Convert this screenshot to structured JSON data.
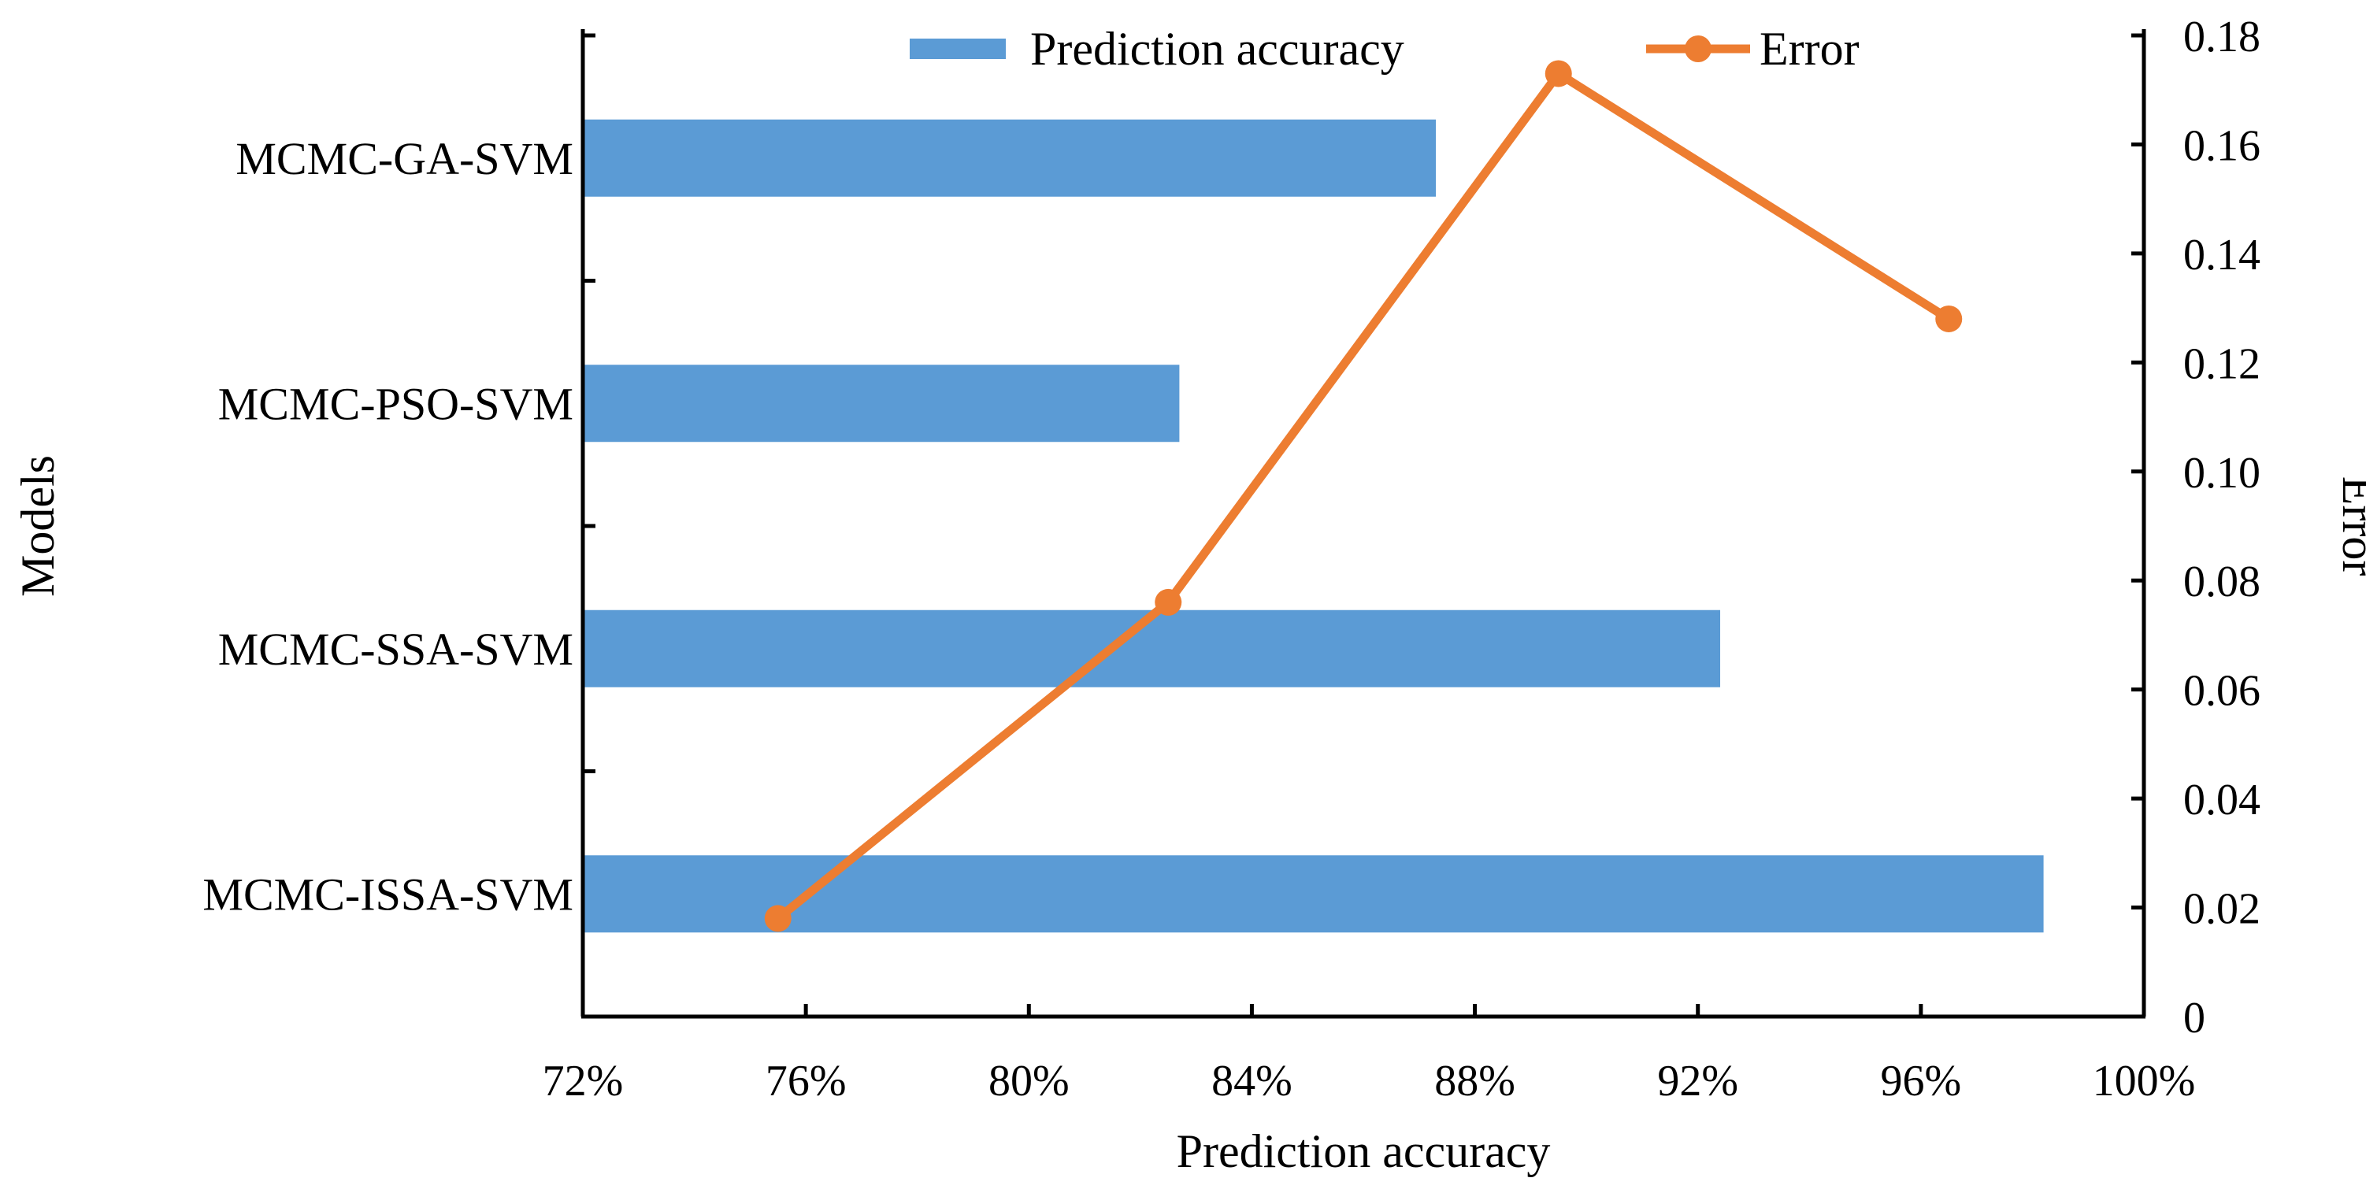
{
  "chart_data": {
    "type": "bar+line",
    "title": "",
    "categories": [
      "MCMC-GA-SVM",
      "MCMC-PSO-SVM",
      "MCMC-SSA-SVM",
      "MCMC-ISSA-SVM"
    ],
    "bar_series": {
      "name": "Prediction accuracy",
      "color": "#5B9BD5",
      "values": [
        87.3,
        82.7,
        92.4,
        98.2
      ]
    },
    "line_series": {
      "name": "Error",
      "color": "#ED7D31",
      "points": [
        {
          "x": 75.5,
          "y": 0.018
        },
        {
          "x": 82.5,
          "y": 0.076
        },
        {
          "x": 89.5,
          "y": 0.173
        },
        {
          "x": 96.5,
          "y": 0.128
        }
      ]
    },
    "xaxis": {
      "label": "Prediction accuracy",
      "range": [
        72,
        100
      ],
      "ticks": [
        72,
        76,
        80,
        84,
        88,
        92,
        96,
        100
      ],
      "tick_labels": [
        "72%",
        "76%",
        "80%",
        "84%",
        "88%",
        "92%",
        "96%",
        "100%"
      ]
    },
    "yaxis_left": {
      "label": "Models"
    },
    "yaxis_right": {
      "label": "Error",
      "range": [
        0,
        0.18
      ],
      "ticks": [
        0,
        0.02,
        0.04,
        0.06,
        0.08,
        0.1,
        0.12,
        0.14,
        0.16,
        0.18
      ],
      "tick_labels": [
        "0",
        "0.02",
        "0.04",
        "0.06",
        "0.08",
        "0.10",
        "0.12",
        "0.14",
        "0.16",
        "0.18"
      ]
    },
    "legend": {
      "position": "top-center",
      "entries": [
        "Prediction accuracy",
        "Error"
      ]
    },
    "grid": false
  }
}
